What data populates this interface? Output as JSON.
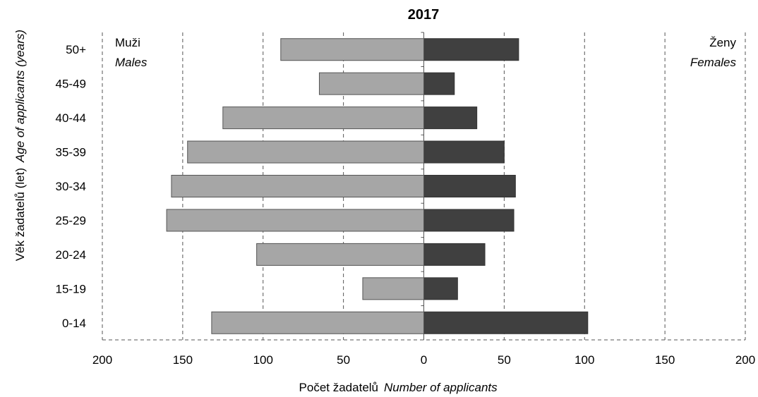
{
  "chart_data": {
    "type": "bar",
    "orientation": "horizontal-population-pyramid",
    "title": "2017",
    "categories": [
      "0-14",
      "15-19",
      "20-24",
      "25-29",
      "30-34",
      "35-39",
      "40-44",
      "45-49",
      "50+"
    ],
    "series": [
      {
        "name": "Muži",
        "name_en": "Males",
        "side": "left",
        "color": "#a6a6a6",
        "values": [
          132,
          38,
          104,
          160,
          157,
          147,
          125,
          65,
          89
        ]
      },
      {
        "name": "Ženy",
        "name_en": "Females",
        "side": "right",
        "color": "#404040",
        "values": [
          102,
          21,
          38,
          56,
          57,
          50,
          33,
          19,
          59
        ]
      }
    ],
    "xlim": [
      -200,
      200
    ],
    "xticks": [
      -200,
      -150,
      -100,
      -50,
      0,
      50,
      100,
      150,
      200
    ],
    "xtick_labels": [
      "200",
      "150",
      "100",
      "50",
      "0",
      "50",
      "100",
      "150",
      "200"
    ],
    "xlabel": "Počet žadatelů",
    "xlabel_en": "Number of applicants",
    "ylabel": "Věk žadatelů (let)",
    "ylabel_en": "Age of applicants (years)",
    "grid": true
  }
}
